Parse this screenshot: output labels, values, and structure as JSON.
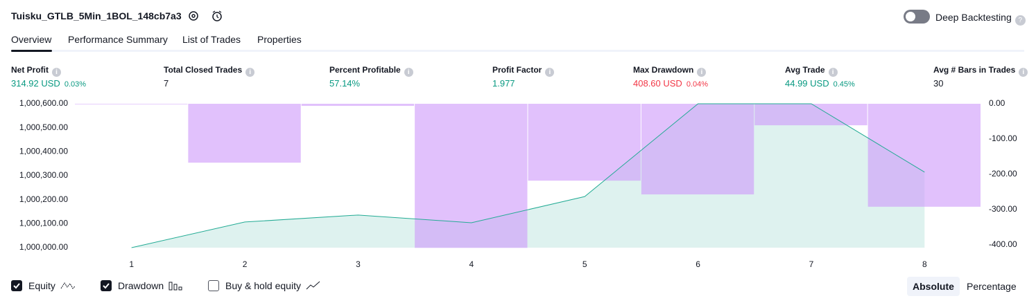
{
  "header": {
    "title": "Tuisku_GTLB_5Min_1BOL_148cb7a3",
    "deep_backtesting": "Deep Backtesting"
  },
  "tabs": [
    "Overview",
    "Performance Summary",
    "List of Trades",
    "Properties"
  ],
  "metrics": [
    {
      "label": "Net Profit",
      "value": "314.92 USD",
      "percent": "0.03%",
      "color": "#089981"
    },
    {
      "label": "Total Closed Trades",
      "value": "7",
      "color": "#131722"
    },
    {
      "label": "Percent Profitable",
      "value": "57.14%",
      "color": "#089981"
    },
    {
      "label": "Profit Factor",
      "value": "1.977",
      "color": "#089981"
    },
    {
      "label": "Max Drawdown",
      "value": "408.60 USD",
      "percent": "0.04%",
      "color": "#f23645"
    },
    {
      "label": "Avg Trade",
      "value": "44.99 USD",
      "percent": "0.45%",
      "color": "#089981"
    },
    {
      "label": "Avg # Bars in Trades",
      "value": "30",
      "color": "#131722"
    }
  ],
  "chart_data": {
    "type": "equity-drawdown",
    "x": [
      1,
      2,
      3,
      4,
      5,
      6,
      7,
      8
    ],
    "xlim": [
      0.5,
      8.5
    ],
    "xticks": [
      1,
      2,
      3,
      4,
      5,
      6,
      7,
      8
    ],
    "ylim": [
      1000000,
      1000600
    ],
    "yticks": [
      {
        "value": 1000000,
        "label": "1,000,000.00"
      },
      {
        "value": 1000100,
        "label": "1,000,100.00"
      },
      {
        "value": 1000200,
        "label": "1,000,200.00"
      },
      {
        "value": 1000300,
        "label": "1,000,300.00"
      },
      {
        "value": 1000400,
        "label": "1,000,400.00"
      },
      {
        "value": 1000500,
        "label": "1,000,500.00"
      },
      {
        "value": 1000600,
        "label": "1,000,600.00"
      }
    ],
    "y2lim": [
      -408,
      0
    ],
    "y2ticks": [
      {
        "value": 0,
        "label": "0.00"
      },
      {
        "value": -100,
        "label": "-100.00"
      },
      {
        "value": -200,
        "label": "-200.00"
      },
      {
        "value": -300,
        "label": "-300.00"
      },
      {
        "value": -400,
        "label": "-400.00"
      }
    ],
    "series": [
      {
        "name": "Equity",
        "color": "#22ab94",
        "values": [
          1000000,
          1000107,
          1000136,
          1000104,
          1000213,
          1000600,
          1000600,
          1000314.92
        ]
      },
      {
        "name": "Drawdown",
        "color": "#cf9bfa",
        "axis": "y2",
        "values": [
          0,
          -167,
          -6,
          -408.6,
          -218,
          -257,
          -61,
          -292
        ]
      }
    ],
    "extra_legend": "Buy & hold equity",
    "modes": [
      "Absolute",
      "Percentage"
    ],
    "active_mode": 0
  }
}
